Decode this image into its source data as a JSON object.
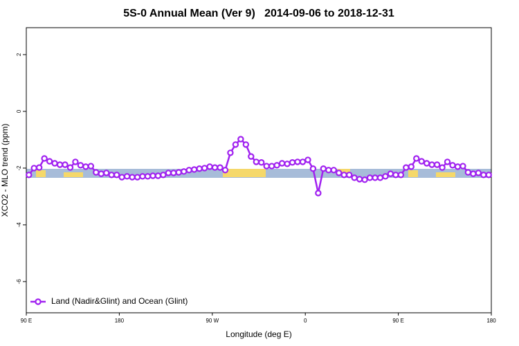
{
  "chart_data": {
    "type": "line",
    "title": "5S-0 Annual Mean (Ver 9)   2014-09-06 to 2018-12-31",
    "x_label": "Longitude (deg E)",
    "y_label": "XCO2 - MLO trend (ppm)",
    "x": [
      92.5,
      97.5,
      102.5,
      107.5,
      112.5,
      117.5,
      122.5,
      127.5,
      132.5,
      137.5,
      142.5,
      147.5,
      152.5,
      157.5,
      162.5,
      167.5,
      172.5,
      177.5,
      182.5,
      187.5,
      192.5,
      197.5,
      202.5,
      207.5,
      212.5,
      217.5,
      222.5,
      227.5,
      232.5,
      237.5,
      242.5,
      247.5,
      252.5,
      257.5,
      262.5,
      267.5,
      272.5,
      277.5,
      282.5,
      287.5,
      292.5,
      297.5,
      302.5,
      307.5,
      312.5,
      317.5,
      322.5,
      327.5,
      332.5,
      337.5,
      342.5,
      347.5,
      352.5,
      357.5,
      362.5,
      367.5,
      372.5,
      377.5,
      382.5,
      387.5,
      392.5,
      397.5,
      402.5,
      407.5,
      412.5,
      417.5,
      422.5,
      427.5,
      432.5,
      437.5,
      442.5,
      447.5,
      452.5,
      457.5,
      462.5,
      467.5,
      472.5,
      477.5,
      482.5,
      487.5,
      492.5,
      497.5,
      502.5,
      507.5,
      512.5,
      517.5,
      522.5,
      527.5,
      532.5,
      537.5
    ],
    "series": [
      {
        "name": "Land (Nadir&Glint) and Ocean (Glint)",
        "color": "#a020f0",
        "values": [
          -2.24,
          -2.0,
          -1.98,
          -1.66,
          -1.76,
          -1.83,
          -1.88,
          -1.88,
          -1.98,
          -1.78,
          -1.9,
          -1.95,
          -1.93,
          -2.15,
          -2.2,
          -2.17,
          -2.24,
          -2.24,
          -2.32,
          -2.29,
          -2.32,
          -2.32,
          -2.29,
          -2.29,
          -2.27,
          -2.27,
          -2.24,
          -2.17,
          -2.17,
          -2.15,
          -2.12,
          -2.07,
          -2.05,
          -2.02,
          -2.0,
          -1.95,
          -1.98,
          -1.98,
          -2.07,
          -1.46,
          -1.17,
          -0.98,
          -1.17,
          -1.59,
          -1.78,
          -1.8,
          -1.93,
          -1.93,
          -1.9,
          -1.83,
          -1.85,
          -1.8,
          -1.78,
          -1.78,
          -1.71,
          -2.02,
          -2.88,
          -2.02,
          -2.07,
          -2.07,
          -2.17,
          -2.24,
          -2.24,
          -2.34,
          -2.39,
          -2.41,
          -2.34,
          -2.34,
          -2.34,
          -2.29,
          -2.2,
          -2.24,
          -2.24,
          -1.98,
          -1.95,
          -1.66,
          -1.76,
          -1.83,
          -1.88,
          -1.88,
          -1.98,
          -1.78,
          -1.9,
          -1.95,
          -1.93,
          -2.15,
          -2.2,
          -2.17,
          -2.24,
          -2.24
        ]
      }
    ],
    "xlim": [
      90,
      540
    ],
    "xticks": [
      {
        "value": 90,
        "label": "90 E"
      },
      180,
      {
        "value": 270,
        "label": "90 W"
      },
      {
        "value": 360,
        "label": "0"
      },
      {
        "value": 450,
        "label": "90 E"
      },
      {
        "value": 540,
        "label": "180"
      }
    ],
    "ylim": [
      -7.1,
      2.95
    ],
    "yticks": [
      -6,
      -4,
      -2,
      0,
      2
    ],
    "legend": "lower left"
  }
}
